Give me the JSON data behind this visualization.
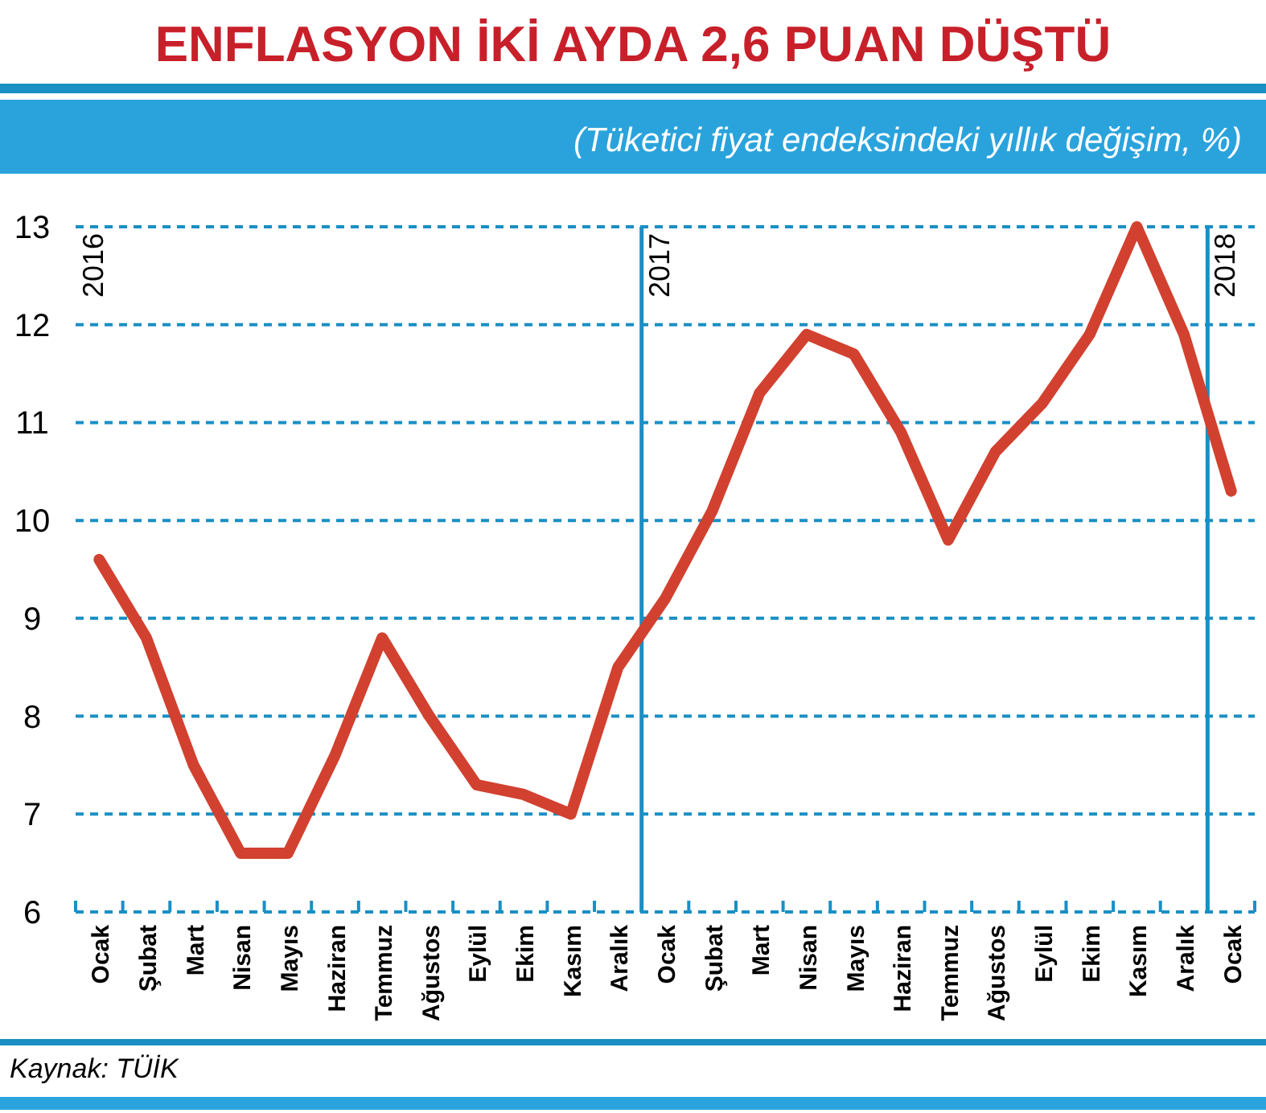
{
  "chart_data": {
    "type": "line",
    "title": "ENFLASYON İKİ AYDA 2,6 PUAN DÜŞTÜ",
    "subtitle": "(Tüketici fiyat endeksindeki yıllık değişim, %)",
    "categories": [
      "Ocak",
      "Şubat",
      "Mart",
      "Nisan",
      "Mayıs",
      "Haziran",
      "Temmuz",
      "Ağustos",
      "Eylül",
      "Ekim",
      "Kasım",
      "Aralık",
      "Ocak",
      "Şubat",
      "Mart",
      "Nisan",
      "Mayıs",
      "Haziran",
      "Temmuz",
      "Ağustos",
      "Eylül",
      "Ekim",
      "Kasım",
      "Aralık",
      "Ocak"
    ],
    "series": [
      {
        "color": "#d2412f",
        "values": [
          9.6,
          8.8,
          7.5,
          6.6,
          6.6,
          7.6,
          8.8,
          8.0,
          7.3,
          7.2,
          7.0,
          8.5,
          9.2,
          10.1,
          11.3,
          11.9,
          11.7,
          10.9,
          9.8,
          10.7,
          11.2,
          11.9,
          13.0,
          11.9,
          10.3
        ]
      }
    ],
    "ylim": [
      6,
      13
    ],
    "yticks": [
      6,
      7,
      8,
      9,
      10,
      11,
      12,
      13
    ],
    "grid": "y",
    "line_style": "solid",
    "annotations": [
      "2016",
      "2017",
      "2018",
      "Kaynak: TÜİK"
    ]
  }
}
